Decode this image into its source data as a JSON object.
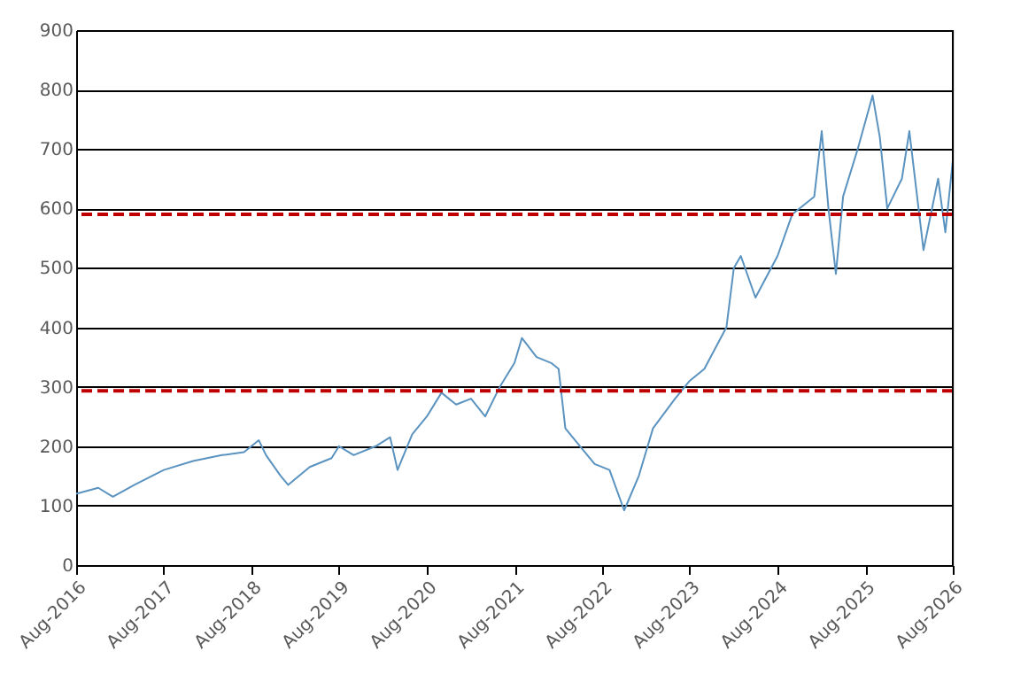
{
  "chart_data": {
    "type": "line",
    "line_style": "solid",
    "marker": "none",
    "grid": "y",
    "x": [
      "2016-08",
      "2016-11",
      "2017-01",
      "2017-04",
      "2017-08",
      "2017-12",
      "2018-04",
      "2018-07",
      "2018-09",
      "2018-10",
      "2018-12",
      "2019-01",
      "2019-04",
      "2019-07",
      "2019-08",
      "2019-10",
      "2020-01",
      "2020-03",
      "2020-04",
      "2020-06",
      "2020-08",
      "2020-10",
      "2020-12",
      "2021-02",
      "2021-04",
      "2021-06",
      "2021-08",
      "2021-09",
      "2021-11",
      "2022-01",
      "2022-02",
      "2022-03",
      "2022-05",
      "2022-07",
      "2022-09",
      "2022-11",
      "2023-01",
      "2023-03",
      "2023-06",
      "2023-08",
      "2023-10",
      "2024-01",
      "2024-02",
      "2024-03",
      "2024-05",
      "2024-08",
      "2024-10",
      "2025-01",
      "2025-02",
      "2025-03",
      "2025-04",
      "2025-05",
      "2025-07",
      "2025-09",
      "2025-10",
      "2025-11",
      "2026-01",
      "2026-02",
      "2026-04",
      "2026-06",
      "2026-07",
      "2026-08"
    ],
    "series": [
      {
        "color": "#5b93c0",
        "values": [
          120,
          130,
          115,
          135,
          160,
          175,
          185,
          190,
          210,
          185,
          150,
          135,
          165,
          180,
          200,
          185,
          200,
          215,
          160,
          220,
          250,
          290,
          270,
          280,
          250,
          300,
          340,
          382,
          350,
          340,
          330,
          230,
          200,
          170,
          160,
          92,
          150,
          230,
          280,
          310,
          330,
          400,
          500,
          520,
          450,
          520,
          590,
          620,
          730,
          600,
          490,
          620,
          700,
          790,
          720,
          600,
          650,
          730,
          530,
          650,
          560,
          680
        ]
      }
    ],
    "xlim": [
      "2016-08",
      "2026-08"
    ],
    "xticks": [
      {
        "value": "2016-08",
        "label": "Aug-2016"
      },
      {
        "value": "2017-08",
        "label": "Aug-2017"
      },
      {
        "value": "2018-08",
        "label": "Aug-2018"
      },
      {
        "value": "2019-08",
        "label": "Aug-2019"
      },
      {
        "value": "2020-08",
        "label": "Aug-2020"
      },
      {
        "value": "2021-08",
        "label": "Aug-2021"
      },
      {
        "value": "2022-08",
        "label": "Aug-2022"
      },
      {
        "value": "2023-08",
        "label": "Aug-2023"
      },
      {
        "value": "2024-08",
        "label": "Aug-2024"
      },
      {
        "value": "2025-08",
        "label": "Aug-2025"
      },
      {
        "value": "2026-08",
        "label": "Aug-2026"
      }
    ],
    "ylim": [
      0,
      900
    ],
    "yticks": [
      0,
      100,
      200,
      300,
      400,
      500,
      600,
      700,
      800,
      900
    ],
    "ref_lines": [
      {
        "axis": "y",
        "value": 590,
        "color": "#c00000",
        "line_style": "dashed"
      },
      {
        "axis": "y",
        "value": 293,
        "color": "#c00000",
        "line_style": "dashed"
      }
    ]
  }
}
